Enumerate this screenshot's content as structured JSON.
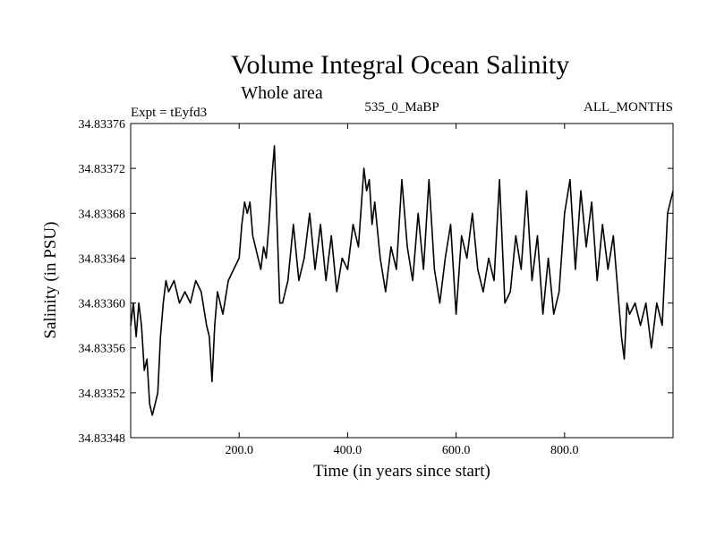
{
  "chart_data": {
    "type": "line",
    "title": "Volume Integral Ocean Salinity",
    "subtitle": "Whole area",
    "expt_label": "Expt = tEyfd3",
    "period_label": "535_0_MaBP",
    "months_label": "ALL_MONTHS",
    "xlabel": "Time (in years since start)",
    "ylabel": "Salinity (in PSU)",
    "xlim": [
      0,
      1000
    ],
    "ylim": [
      34.83348,
      34.83376
    ],
    "x_ticks": [
      200,
      400,
      600,
      800
    ],
    "x_tick_labels": [
      "200.0",
      "400.0",
      "600.0",
      "800.0"
    ],
    "y_ticks": [
      34.83348,
      34.83352,
      34.83356,
      34.8336,
      34.83364,
      34.83368,
      34.83372,
      34.83376
    ],
    "y_tick_labels": [
      "34.83348",
      "34.83352",
      "34.83356",
      "34.83360",
      "34.83364",
      "34.83368",
      "34.83372",
      "34.83376"
    ],
    "series": [
      {
        "name": "Salinity",
        "x": [
          0,
          5,
          10,
          15,
          20,
          25,
          30,
          35,
          40,
          45,
          50,
          55,
          60,
          65,
          70,
          80,
          90,
          100,
          110,
          120,
          130,
          140,
          145,
          150,
          155,
          160,
          170,
          180,
          190,
          200,
          205,
          210,
          215,
          220,
          225,
          230,
          240,
          245,
          250,
          255,
          260,
          265,
          270,
          275,
          280,
          290,
          300,
          310,
          320,
          330,
          340,
          350,
          360,
          370,
          380,
          390,
          400,
          410,
          420,
          430,
          435,
          440,
          445,
          450,
          460,
          470,
          480,
          490,
          500,
          510,
          520,
          530,
          540,
          550,
          560,
          570,
          580,
          590,
          600,
          610,
          620,
          630,
          640,
          650,
          660,
          670,
          680,
          690,
          700,
          710,
          720,
          730,
          740,
          750,
          760,
          770,
          780,
          790,
          800,
          810,
          820,
          830,
          840,
          850,
          860,
          870,
          880,
          890,
          900,
          905,
          910,
          915,
          920,
          930,
          940,
          950,
          960,
          970,
          980,
          990,
          1000
        ],
        "values": [
          34.83358,
          34.8336,
          34.83357,
          34.8336,
          34.83358,
          34.83354,
          34.83355,
          34.83351,
          34.8335,
          34.83351,
          34.83352,
          34.83357,
          34.8336,
          34.83362,
          34.83361,
          34.83362,
          34.8336,
          34.83361,
          34.8336,
          34.83362,
          34.83361,
          34.83358,
          34.83357,
          34.83353,
          34.83358,
          34.83361,
          34.83359,
          34.83362,
          34.83363,
          34.83364,
          34.83367,
          34.83369,
          34.83368,
          34.83369,
          34.83366,
          34.83365,
          34.83363,
          34.83365,
          34.83364,
          34.83367,
          34.83371,
          34.83374,
          34.83367,
          34.8336,
          34.8336,
          34.83362,
          34.83367,
          34.83362,
          34.83364,
          34.83368,
          34.83363,
          34.83367,
          34.83362,
          34.83366,
          34.83361,
          34.83364,
          34.83363,
          34.83367,
          34.83365,
          34.83372,
          34.8337,
          34.83371,
          34.83367,
          34.83369,
          34.83364,
          34.83361,
          34.83365,
          34.83363,
          34.83371,
          34.83365,
          34.83362,
          34.83368,
          34.83363,
          34.83371,
          34.83363,
          34.8336,
          34.83364,
          34.83367,
          34.83359,
          34.83366,
          34.83364,
          34.83368,
          34.83363,
          34.83361,
          34.83364,
          34.83362,
          34.83371,
          34.8336,
          34.83361,
          34.83366,
          34.83363,
          34.8337,
          34.83362,
          34.83366,
          34.83359,
          34.83364,
          34.83359,
          34.83361,
          34.83368,
          34.83371,
          34.83363,
          34.8337,
          34.83365,
          34.83369,
          34.83362,
          34.83367,
          34.83363,
          34.83366,
          34.8336,
          34.83357,
          34.83355,
          34.8336,
          34.83359,
          34.8336,
          34.83358,
          34.8336,
          34.83356,
          34.8336,
          34.83358,
          34.83368,
          34.8337
        ]
      }
    ]
  }
}
